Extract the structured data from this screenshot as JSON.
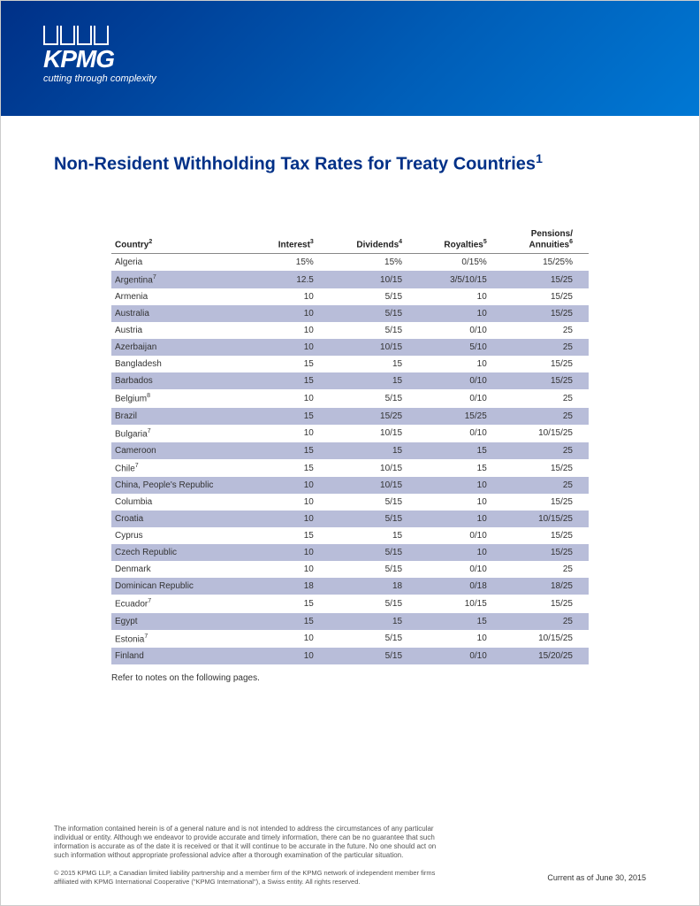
{
  "header": {
    "logo_text": "KPMG",
    "tagline": "cutting through complexity",
    "band_gradient_start": "#003087",
    "band_gradient_end": "#0078d4"
  },
  "title": "Non-Resident Withholding Tax Rates for Treaty Countries",
  "title_footnote": "1",
  "title_color": "#003087",
  "table": {
    "stripe_color": "#b8bdd9",
    "font_size": 10,
    "columns": [
      {
        "label": "Country",
        "sup": "2"
      },
      {
        "label": "Interest",
        "sup": "3"
      },
      {
        "label": "Dividends",
        "sup": "4"
      },
      {
        "label": "Royalties",
        "sup": "5"
      },
      {
        "label": "Pensions/\nAnnuities",
        "sup": "6"
      }
    ],
    "rows": [
      {
        "country": "Algeria",
        "sup": "",
        "interest": "15%",
        "dividends": "15%",
        "royalties": "0/15%",
        "pensions": "15/25%"
      },
      {
        "country": "Argentina",
        "sup": "7",
        "interest": "12.5",
        "dividends": "10/15",
        "royalties": "3/5/10/15",
        "pensions": "15/25"
      },
      {
        "country": "Armenia",
        "sup": "",
        "interest": "10",
        "dividends": "5/15",
        "royalties": "10",
        "pensions": "15/25"
      },
      {
        "country": "Australia",
        "sup": "",
        "interest": "10",
        "dividends": "5/15",
        "royalties": "10",
        "pensions": "15/25"
      },
      {
        "country": "Austria",
        "sup": "",
        "interest": "10",
        "dividends": "5/15",
        "royalties": "0/10",
        "pensions": "25"
      },
      {
        "country": "Azerbaijan",
        "sup": "",
        "interest": "10",
        "dividends": "10/15",
        "royalties": "5/10",
        "pensions": "25"
      },
      {
        "country": "Bangladesh",
        "sup": "",
        "interest": "15",
        "dividends": "15",
        "royalties": "10",
        "pensions": "15/25"
      },
      {
        "country": "Barbados",
        "sup": "",
        "interest": "15",
        "dividends": "15",
        "royalties": "0/10",
        "pensions": "15/25"
      },
      {
        "country": "Belgium",
        "sup": "8",
        "interest": "10",
        "dividends": "5/15",
        "royalties": "0/10",
        "pensions": "25"
      },
      {
        "country": "Brazil",
        "sup": "",
        "interest": "15",
        "dividends": "15/25",
        "royalties": "15/25",
        "pensions": "25"
      },
      {
        "country": "Bulgaria",
        "sup": "7",
        "interest": "10",
        "dividends": "10/15",
        "royalties": "0/10",
        "pensions": "10/15/25"
      },
      {
        "country": "Cameroon",
        "sup": "",
        "interest": "15",
        "dividends": "15",
        "royalties": "15",
        "pensions": "25"
      },
      {
        "country": "Chile",
        "sup": "7",
        "interest": "15",
        "dividends": "10/15",
        "royalties": "15",
        "pensions": "15/25"
      },
      {
        "country": "China, People's Republic",
        "sup": "",
        "interest": "10",
        "dividends": "10/15",
        "royalties": "10",
        "pensions": "25"
      },
      {
        "country": "Columbia",
        "sup": "",
        "interest": "10",
        "dividends": "5/15",
        "royalties": "10",
        "pensions": "15/25"
      },
      {
        "country": "Croatia",
        "sup": "",
        "interest": "10",
        "dividends": "5/15",
        "royalties": "10",
        "pensions": "10/15/25"
      },
      {
        "country": "Cyprus",
        "sup": "",
        "interest": "15",
        "dividends": "15",
        "royalties": "0/10",
        "pensions": "15/25"
      },
      {
        "country": "Czech Republic",
        "sup": "",
        "interest": "10",
        "dividends": "5/15",
        "royalties": "10",
        "pensions": "15/25"
      },
      {
        "country": "Denmark",
        "sup": "",
        "interest": "10",
        "dividends": "5/15",
        "royalties": "0/10",
        "pensions": "25"
      },
      {
        "country": "Dominican Republic",
        "sup": "",
        "interest": "18",
        "dividends": "18",
        "royalties": "0/18",
        "pensions": "18/25"
      },
      {
        "country": "Ecuador",
        "sup": "7",
        "interest": "15",
        "dividends": "5/15",
        "royalties": "10/15",
        "pensions": "15/25"
      },
      {
        "country": "Egypt",
        "sup": "",
        "interest": "15",
        "dividends": "15",
        "royalties": "15",
        "pensions": "25"
      },
      {
        "country": "Estonia",
        "sup": "7",
        "interest": "10",
        "dividends": "5/15",
        "royalties": "10",
        "pensions": "10/15/25"
      },
      {
        "country": "Finland",
        "sup": "",
        "interest": "10",
        "dividends": "5/15",
        "royalties": "0/10",
        "pensions": "15/20/25"
      }
    ],
    "note": "Refer to notes on the following pages."
  },
  "footer": {
    "disclaimer": "The information contained herein is of a general nature and is not intended to address the circumstances of any particular individual or entity. Although we endeavor to provide accurate and timely information, there can be no guarantee that such information is accurate as of the date it is received or that it will continue to be accurate in the future. No one should act on such information without appropriate professional advice after a thorough examination of the particular situation.",
    "copyright": "© 2015 KPMG LLP, a Canadian limited liability partnership and a member firm of the KPMG network of independent member firms affiliated with KPMG International Cooperative (\"KPMG International\"), a Swiss entity. All rights reserved.",
    "current_label": "Current as of ",
    "current_date": "June 30, 2015"
  }
}
